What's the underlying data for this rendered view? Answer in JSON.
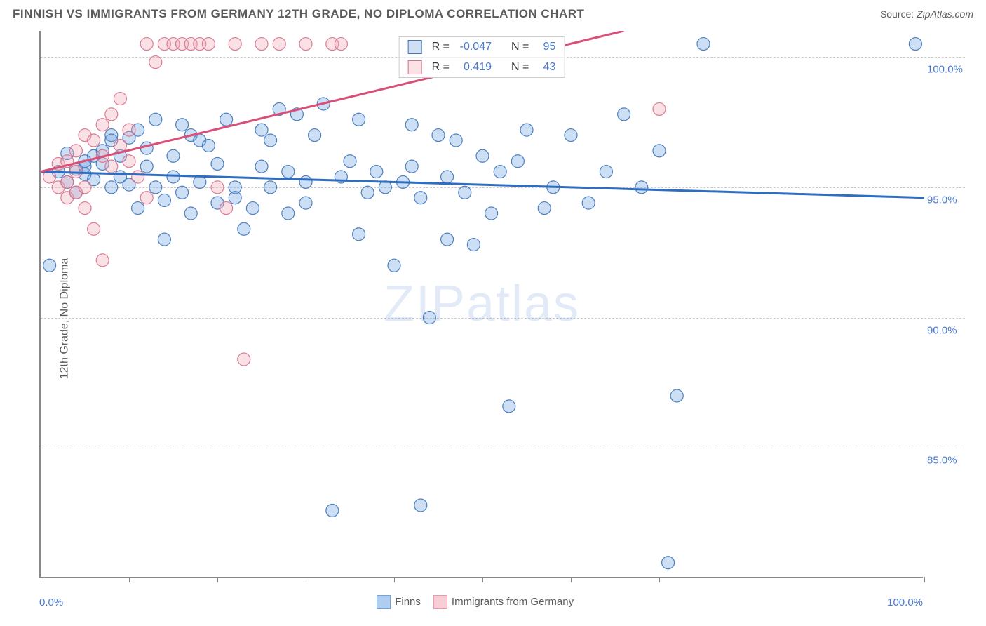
{
  "header": {
    "title": "FINNISH VS IMMIGRANTS FROM GERMANY 12TH GRADE, NO DIPLOMA CORRELATION CHART",
    "source_prefix": "Source:",
    "source_name": "ZipAtlas.com"
  },
  "chart": {
    "type": "scatter",
    "ylabel": "12th Grade, No Diploma",
    "xlim": [
      0,
      100
    ],
    "ylim": [
      80,
      101
    ],
    "xtick_positions": [
      0,
      10,
      20,
      30,
      40,
      50,
      60,
      70,
      100
    ],
    "x_start_label": "0.0%",
    "x_end_label": "100.0%",
    "ytick_labels": [
      {
        "value": 100,
        "label": "100.0%"
      },
      {
        "value": 95,
        "label": "95.0%"
      },
      {
        "value": 90,
        "label": "90.0%"
      },
      {
        "value": 85,
        "label": "85.0%"
      }
    ],
    "background_color": "#ffffff",
    "grid_color": "#cccccc",
    "axis_color": "#888888",
    "tick_color": "#888888",
    "label_color": "#5a5a5a",
    "value_color": "#4a7bd0",
    "watermark_text": "ZIPatlas",
    "watermark_color": "#4a7bd0",
    "marker_radius": 9,
    "marker_fill_opacity": 0.35,
    "marker_stroke_opacity": 0.9,
    "marker_stroke_width": 1.2,
    "series": [
      {
        "name": "Finns",
        "color": "#6fa3e0",
        "stroke": "#3d73b8",
        "r_value": "-0.047",
        "n_value": "95",
        "trend": {
          "x1": 0,
          "y1": 95.6,
          "x2": 100,
          "y2": 94.6,
          "color": "#2f6dc0",
          "width": 3
        },
        "points": [
          [
            2,
            95.6
          ],
          [
            3,
            95.2
          ],
          [
            3,
            96.3
          ],
          [
            4,
            94.8
          ],
          [
            4,
            95.7
          ],
          [
            5,
            95.5
          ],
          [
            5,
            95.8
          ],
          [
            5,
            96.0
          ],
          [
            6,
            95.3
          ],
          [
            6,
            96.2
          ],
          [
            7,
            95.9
          ],
          [
            7,
            96.4
          ],
          [
            8,
            95.0
          ],
          [
            8,
            97.0
          ],
          [
            8,
            96.8
          ],
          [
            9,
            96.2
          ],
          [
            9,
            95.4
          ],
          [
            10,
            96.9
          ],
          [
            10,
            95.1
          ],
          [
            11,
            97.2
          ],
          [
            11,
            94.2
          ],
          [
            12,
            95.8
          ],
          [
            12,
            96.5
          ],
          [
            13,
            97.6
          ],
          [
            13,
            95.0
          ],
          [
            14,
            94.5
          ],
          [
            14,
            93.0
          ],
          [
            15,
            96.2
          ],
          [
            15,
            95.4
          ],
          [
            16,
            97.4
          ],
          [
            16,
            94.8
          ],
          [
            17,
            97.0
          ],
          [
            17,
            94.0
          ],
          [
            18,
            96.8
          ],
          [
            18,
            95.2
          ],
          [
            19,
            96.6
          ],
          [
            20,
            94.4
          ],
          [
            20,
            95.9
          ],
          [
            21,
            97.6
          ],
          [
            22,
            95.0
          ],
          [
            22,
            94.6
          ],
          [
            23,
            93.4
          ],
          [
            24,
            94.2
          ],
          [
            25,
            97.2
          ],
          [
            25,
            95.8
          ],
          [
            26,
            95.0
          ],
          [
            26,
            96.8
          ],
          [
            27,
            98.0
          ],
          [
            28,
            95.6
          ],
          [
            28,
            94.0
          ],
          [
            29,
            97.8
          ],
          [
            30,
            95.2
          ],
          [
            30,
            94.4
          ],
          [
            31,
            97.0
          ],
          [
            32,
            98.2
          ],
          [
            33,
            82.6
          ],
          [
            34,
            95.4
          ],
          [
            35,
            96.0
          ],
          [
            36,
            97.6
          ],
          [
            36,
            93.2
          ],
          [
            37,
            94.8
          ],
          [
            38,
            95.6
          ],
          [
            39,
            95.0
          ],
          [
            40,
            92.0
          ],
          [
            41,
            95.2
          ],
          [
            42,
            95.8
          ],
          [
            42,
            97.4
          ],
          [
            43,
            82.8
          ],
          [
            43,
            94.6
          ],
          [
            44,
            90.0
          ],
          [
            45,
            97.0
          ],
          [
            46,
            93.0
          ],
          [
            46,
            95.4
          ],
          [
            47,
            96.8
          ],
          [
            48,
            94.8
          ],
          [
            49,
            92.8
          ],
          [
            50,
            96.2
          ],
          [
            51,
            94.0
          ],
          [
            52,
            95.6
          ],
          [
            53,
            86.6
          ],
          [
            54,
            96.0
          ],
          [
            55,
            97.2
          ],
          [
            57,
            94.2
          ],
          [
            58,
            95.0
          ],
          [
            60,
            97.0
          ],
          [
            62,
            94.4
          ],
          [
            64,
            95.6
          ],
          [
            66,
            97.8
          ],
          [
            68,
            95.0
          ],
          [
            70,
            96.4
          ],
          [
            71,
            80.6
          ],
          [
            72,
            87.0
          ],
          [
            75,
            100.5
          ],
          [
            99,
            100.5
          ],
          [
            1,
            92.0
          ]
        ]
      },
      {
        "name": "Immigrants from Germany",
        "color": "#f2a8b8",
        "stroke": "#d86f8a",
        "r_value": "0.419",
        "n_value": "43",
        "trend": {
          "x1": 0,
          "y1": 95.6,
          "x2": 66,
          "y2": 101.0,
          "color": "#d94f78",
          "width": 3
        },
        "points": [
          [
            1,
            95.4
          ],
          [
            2,
            95.0
          ],
          [
            2,
            95.9
          ],
          [
            3,
            96.0
          ],
          [
            3,
            95.2
          ],
          [
            3,
            94.6
          ],
          [
            4,
            96.4
          ],
          [
            4,
            95.6
          ],
          [
            4,
            94.8
          ],
          [
            5,
            97.0
          ],
          [
            5,
            95.0
          ],
          [
            5,
            94.2
          ],
          [
            6,
            96.8
          ],
          [
            6,
            93.4
          ],
          [
            7,
            96.2
          ],
          [
            7,
            97.4
          ],
          [
            7,
            92.2
          ],
          [
            8,
            95.8
          ],
          [
            8,
            97.8
          ],
          [
            9,
            96.6
          ],
          [
            9,
            98.4
          ],
          [
            10,
            96.0
          ],
          [
            10,
            97.2
          ],
          [
            11,
            95.4
          ],
          [
            12,
            94.6
          ],
          [
            12,
            100.5
          ],
          [
            13,
            99.8
          ],
          [
            14,
            100.5
          ],
          [
            15,
            100.5
          ],
          [
            16,
            100.5
          ],
          [
            17,
            100.5
          ],
          [
            18,
            100.5
          ],
          [
            19,
            100.5
          ],
          [
            20,
            95.0
          ],
          [
            21,
            94.2
          ],
          [
            22,
            100.5
          ],
          [
            23,
            88.4
          ],
          [
            25,
            100.5
          ],
          [
            27,
            100.5
          ],
          [
            30,
            100.5
          ],
          [
            33,
            100.5
          ],
          [
            34,
            100.5
          ],
          [
            70,
            98.0
          ]
        ]
      }
    ],
    "stats_labels": {
      "r": "R =",
      "n": "N ="
    },
    "bottom_legend": [
      {
        "label": "Finns",
        "fill": "#aecdef",
        "stroke": "#6fa3e0"
      },
      {
        "label": "Immigrants from Germany",
        "fill": "#f7cdd6",
        "stroke": "#e89aae"
      }
    ]
  }
}
